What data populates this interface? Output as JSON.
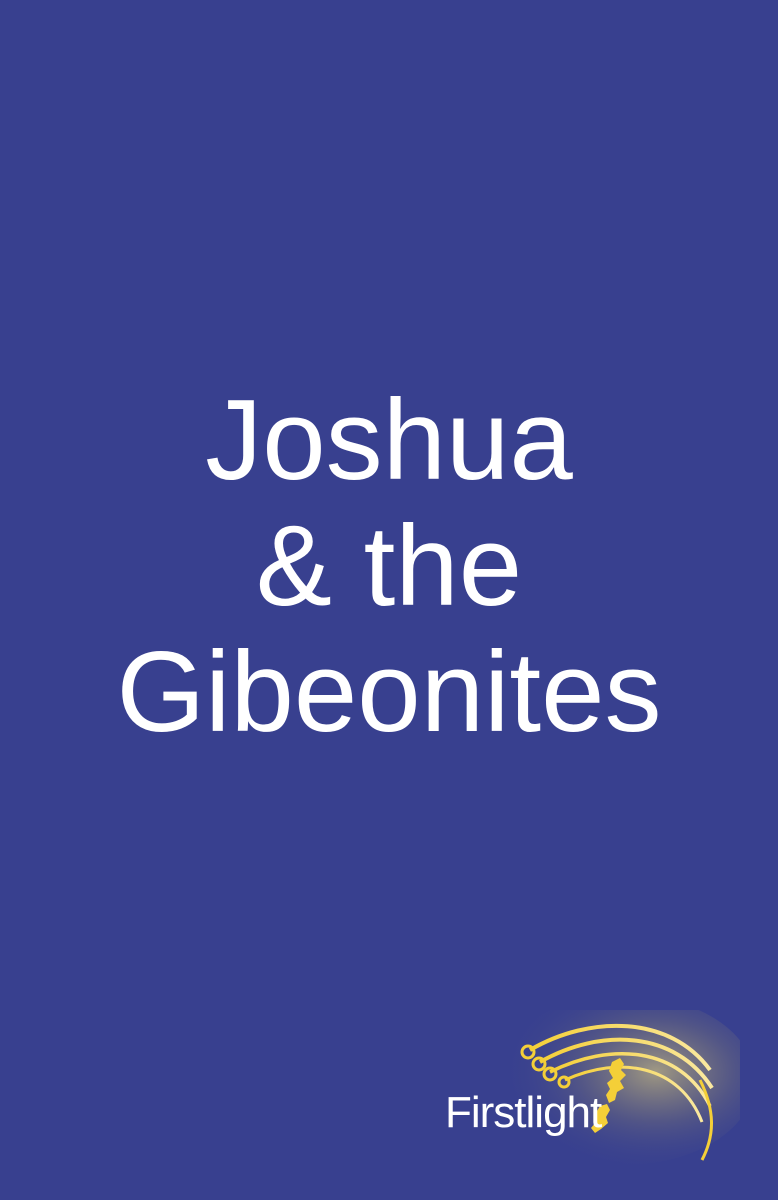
{
  "cover": {
    "background_color": "#38408f",
    "title_lines": [
      "Joshua",
      "& the",
      "Gibeonites"
    ]
  },
  "logo": {
    "wordmark": "Firstlight",
    "emblem": "light-rays-and-map-icon",
    "accent_color": "#f2d044"
  }
}
